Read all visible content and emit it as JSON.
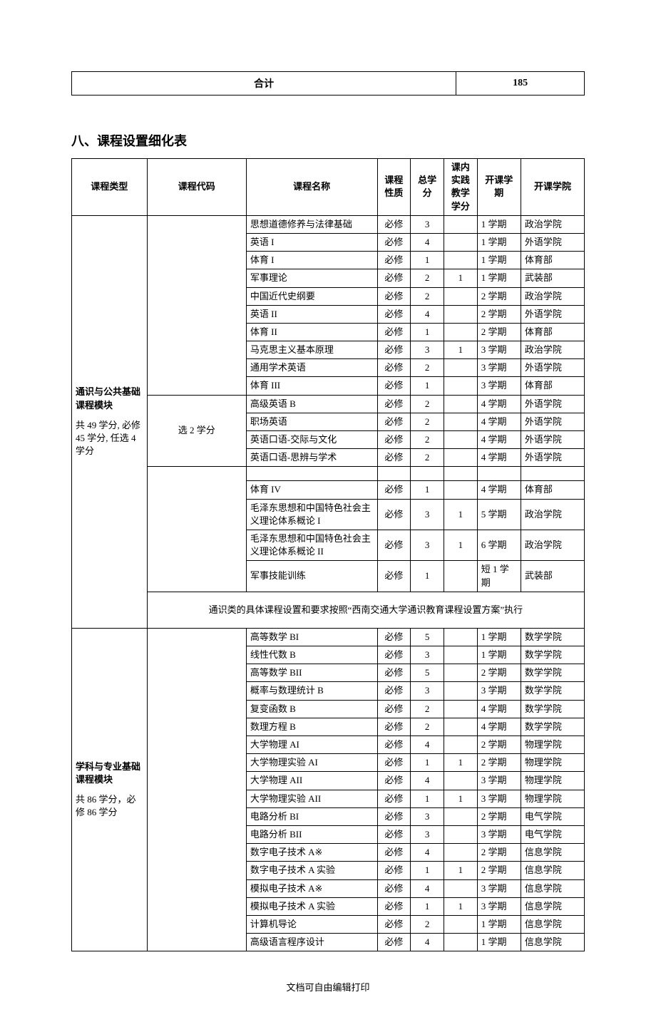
{
  "summary": {
    "label": "合计",
    "value": "185"
  },
  "section_heading": "八、课程设置细化表",
  "headers": {
    "type": "课程类型",
    "code": "课程代码",
    "name": "课程名称",
    "nature": "课程性质",
    "credit": "总学分",
    "practice": "课内实践教学学分",
    "term": "开课学期",
    "dept": "开课学院"
  },
  "block1": {
    "type_label": "通识与公共基础课程模块",
    "type_sub": "共 49 学分, 必修 45 学分, 任选 4 学分",
    "group1_code": "",
    "group2_code": "选 2 学分",
    "rows_a": [
      {
        "name": "思想道德修养与法律基础",
        "nature": "必修",
        "credit": "3",
        "prac": "",
        "term": "1 学期",
        "dept": "政治学院"
      },
      {
        "name": "英语 I",
        "nature": "必修",
        "credit": "4",
        "prac": "",
        "term": "1 学期",
        "dept": "外语学院"
      },
      {
        "name": "体育 I",
        "nature": "必修",
        "credit": "1",
        "prac": "",
        "term": "1 学期",
        "dept": "体育部"
      },
      {
        "name": "军事理论",
        "nature": "必修",
        "credit": "2",
        "prac": "1",
        "term": "1 学期",
        "dept": "武装部"
      },
      {
        "name": "中国近代史纲要",
        "nature": "必修",
        "credit": "2",
        "prac": "",
        "term": "2 学期",
        "dept": "政治学院"
      },
      {
        "name": "英语 II",
        "nature": "必修",
        "credit": "4",
        "prac": "",
        "term": "2 学期",
        "dept": "外语学院"
      },
      {
        "name": "体育 II",
        "nature": "必修",
        "credit": "1",
        "prac": "",
        "term": "2 学期",
        "dept": "体育部"
      },
      {
        "name": "马克思主义基本原理",
        "nature": "必修",
        "credit": "3",
        "prac": "1",
        "term": "3 学期",
        "dept": "政治学院"
      },
      {
        "name": "通用学术英语",
        "nature": "必修",
        "credit": "2",
        "prac": "",
        "term": "3 学期",
        "dept": "外语学院"
      },
      {
        "name": "体育 III",
        "nature": "必修",
        "credit": "1",
        "prac": "",
        "term": "3 学期",
        "dept": "体育部"
      }
    ],
    "rows_b": [
      {
        "name": "高级英语 B",
        "nature": "必修",
        "credit": "2",
        "prac": "",
        "term": "4 学期",
        "dept": "外语学院"
      },
      {
        "name": "职场英语",
        "nature": "必修",
        "credit": "2",
        "prac": "",
        "term": "4 学期",
        "dept": "外语学院"
      },
      {
        "name": "英语口语-交际与文化",
        "nature": "必修",
        "credit": "2",
        "prac": "",
        "term": "4 学期",
        "dept": "外语学院"
      },
      {
        "name": "英语口语-思辨与学术",
        "nature": "必修",
        "credit": "2",
        "prac": "",
        "term": "4 学期",
        "dept": "外语学院"
      }
    ],
    "rows_c": [
      {
        "name": "体育 IV",
        "nature": "必修",
        "credit": "1",
        "prac": "",
        "term": "4 学期",
        "dept": "体育部"
      },
      {
        "name": "毛泽东思想和中国特色社会主义理论体系概论 I",
        "nature": "必修",
        "credit": "3",
        "prac": "1",
        "term": "5 学期",
        "dept": "政治学院"
      },
      {
        "name": "毛泽东思想和中国特色社会主义理论体系概论 II",
        "nature": "必修",
        "credit": "3",
        "prac": "1",
        "term": "6 学期",
        "dept": "政治学院"
      },
      {
        "name": "军事技能训练",
        "nature": "必修",
        "credit": "1",
        "prac": "",
        "term": "短 1 学期",
        "dept": "武装部"
      }
    ],
    "note": "通识类的具体课程设置和要求按照“西南交通大学通识教育课程设置方案”执行"
  },
  "block2": {
    "type_label": "学科与专业基础课程模块",
    "type_sub": "共 86 学分，必修 86 学分",
    "rows": [
      {
        "name": "高等数学 BI",
        "nature": "必修",
        "credit": "5",
        "prac": "",
        "term": "1 学期",
        "dept": "数学学院"
      },
      {
        "name": "线性代数 B",
        "nature": "必修",
        "credit": "3",
        "prac": "",
        "term": "1 学期",
        "dept": "数学学院"
      },
      {
        "name": "高等数学 BII",
        "nature": "必修",
        "credit": "5",
        "prac": "",
        "term": "2 学期",
        "dept": "数学学院"
      },
      {
        "name": "概率与数理统计 B",
        "nature": "必修",
        "credit": "3",
        "prac": "",
        "term": "3 学期",
        "dept": "数学学院"
      },
      {
        "name": "复变函数  B",
        "nature": "必修",
        "credit": "2",
        "prac": "",
        "term": "4 学期",
        "dept": "数学学院"
      },
      {
        "name": "数理方程 B",
        "nature": "必修",
        "credit": "2",
        "prac": "",
        "term": "4 学期",
        "dept": "数学学院"
      },
      {
        "name": "大学物理 AI",
        "nature": "必修",
        "credit": "4",
        "prac": "",
        "term": "2 学期",
        "dept": "物理学院"
      },
      {
        "name": "大学物理实验 AI",
        "nature": "必修",
        "credit": "1",
        "prac": "1",
        "term": "2 学期",
        "dept": "物理学院"
      },
      {
        "name": "大学物理 AII",
        "nature": "必修",
        "credit": "4",
        "prac": "",
        "term": "3 学期",
        "dept": "物理学院"
      },
      {
        "name": "大学物理实验 AII",
        "nature": "必修",
        "credit": "1",
        "prac": "1",
        "term": "3 学期",
        "dept": "物理学院"
      },
      {
        "name": "电路分析 BI",
        "nature": "必修",
        "credit": "3",
        "prac": "",
        "term": "2 学期",
        "dept": "电气学院"
      },
      {
        "name": "电路分析 BII",
        "nature": "必修",
        "credit": "3",
        "prac": "",
        "term": "3 学期",
        "dept": "电气学院"
      },
      {
        "name": "数字电子技术 A※",
        "nature": "必修",
        "credit": "4",
        "prac": "",
        "term": "2 学期",
        "dept": "信息学院"
      },
      {
        "name": "数字电子技术 A 实验",
        "nature": "必修",
        "credit": "1",
        "prac": "1",
        "term": "2 学期",
        "dept": "信息学院"
      },
      {
        "name": "模拟电子技术 A※",
        "nature": "必修",
        "credit": "4",
        "prac": "",
        "term": "3 学期",
        "dept": "信息学院"
      },
      {
        "name": "模拟电子技术 A 实验",
        "nature": "必修",
        "credit": "1",
        "prac": "1",
        "term": "3 学期",
        "dept": "信息学院"
      },
      {
        "name": "计算机导论",
        "nature": "必修",
        "credit": "2",
        "prac": "",
        "term": "1 学期",
        "dept": "信息学院"
      },
      {
        "name": "高级语言程序设计",
        "nature": "必修",
        "credit": "4",
        "prac": "",
        "term": "1 学期",
        "dept": "信息学院"
      }
    ]
  },
  "footer": "文档可自由编辑打印"
}
